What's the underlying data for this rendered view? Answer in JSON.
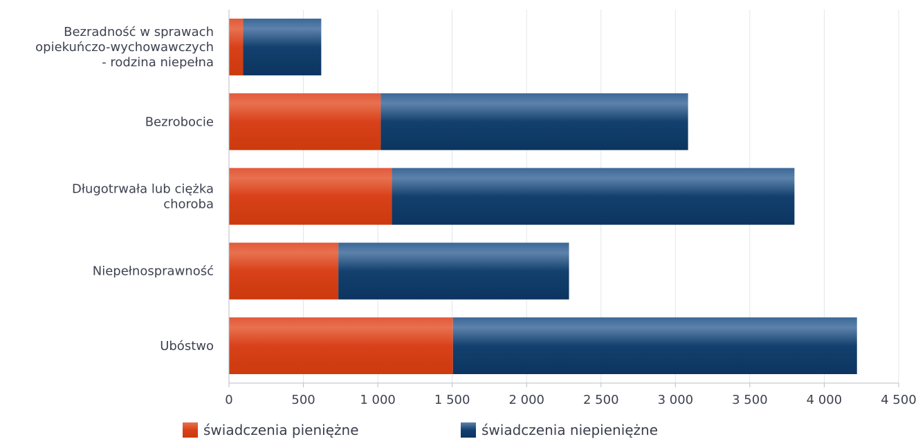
{
  "chart_data": {
    "type": "bar",
    "orientation": "horizontal",
    "stacked": true,
    "categories": [
      "Bezradność w sprawach opiekuńczo-wychowawczych - rodzina niepełna",
      "Bezrobocie",
      "Długotrwała lub ciężka choroba",
      "Niepełnosprawność",
      "Ubóstwo"
    ],
    "category_lines": [
      [
        "Bezradność w sprawach",
        "opiekuńczo-wychowawczych",
        "- rodzina niepełna"
      ],
      [
        "Bezrobocie"
      ],
      [
        "Długotrwała lub ciężka",
        "choroba"
      ],
      [
        "Niepełnosprawność"
      ],
      [
        "Ubóstwo"
      ]
    ],
    "series": [
      {
        "name": "świadczenia pieniężne",
        "color": "#d8411a",
        "values": [
          95,
          1020,
          1095,
          735,
          1505
        ]
      },
      {
        "name": "świadczenia niepieniężne",
        "color": "#13406e",
        "values": [
          525,
          2065,
          2705,
          1550,
          2715
        ]
      }
    ],
    "xlim": [
      0,
      4500
    ],
    "ticks": [
      {
        "value": 0,
        "label": "0"
      },
      {
        "value": 500,
        "label": "500"
      },
      {
        "value": 1000,
        "label": "1 000"
      },
      {
        "value": 1500,
        "label": "1 500"
      },
      {
        "value": 2000,
        "label": "2 000"
      },
      {
        "value": 2500,
        "label": "2 500"
      },
      {
        "value": 3000,
        "label": "3 000"
      },
      {
        "value": 3500,
        "label": "3 500"
      },
      {
        "value": 4000,
        "label": "4 000"
      },
      {
        "value": 4500,
        "label": "4 500"
      }
    ],
    "grid": true,
    "legend": "bottom",
    "title": "",
    "xlabel": "",
    "ylabel": ""
  }
}
